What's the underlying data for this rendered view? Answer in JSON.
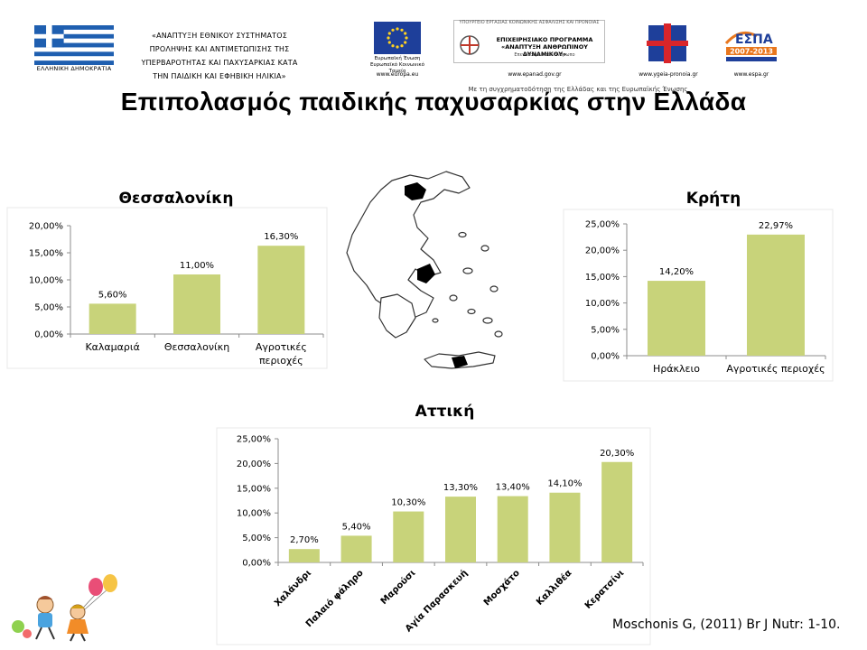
{
  "header": {
    "flag_caption": "ΕΛΛΗΝΙΚΗ ΔΗΜΟΚΡΑΤΙΑ",
    "project_lines": [
      "«ΑΝΑΠΤΥΞΗ ΕΘΝΙΚΟΥ ΣΥΣΤΗΜΑΤΟΣ",
      "ΠΡΟΛΗΨΗΣ ΚΑΙ ΑΝΤΙΜΕΤΩΠΙΣΗΣ ΤΗΣ",
      "ΥΠΕΡΒΑΡΟΤΗΤΑΣ ΚΑΙ ΠΑΧΥΣΑΡΚΙΑΣ ΚΑΤΑ",
      "ΤΗΝ ΠΑΙΔΙΚΗ ΚΑΙ ΕΦΗΒΙΚΗ ΗΛΙΚΙΑ»"
    ],
    "eu_caption": "Ευρωπαϊκή Ένωση Ευρωπαϊκό Κοινωνικό Ταμείο",
    "eu_url": "www.europa.eu",
    "op_top": "ΥΠΟΥΡΓΕΙΟ ΕΡΓΑΣΙΑΣ ΚΟΙΝΩΝΙΚΗΣ ΑΣΦΑΛΙΣΗΣ ΚΑΙ ΠΡΟΝΟΙΑΣ",
    "op_name": "ΕΠΙΧΕΙΡΗΣΙΑΚΟ ΠΡΟΓΡΑΜΜΑ «ΑΝΑΠΤΥΞΗ ΑΝΘΡΩΠΙΝΟΥ ΔΥΝΑΜΙΚΟΥ»",
    "op_sub": "Επενδύουμε στον άνθρωπο",
    "op_url": "www.epanad.gov.gr",
    "ministry_url": "www.ygeia-pronoia.gr",
    "espa_name": "ΕΣΠΑ",
    "espa_years": "2007-2013",
    "espa_url": "www.espa.gr",
    "cofunding": "Με τη συγχρηματοδότηση της Ελλάδας και της Ευρωπαϊκής Ένωσης"
  },
  "title": "Επιπολασμός παιδικής παχυσαρκίας στην Ελλάδα",
  "citation": "Moschonis G, (2011) Br J Nutr: 1-10.",
  "colors": {
    "bar": "#c8d37a",
    "axis": "#8c8c8c",
    "map_fill": "#000000",
    "map_stroke": "#333333"
  },
  "chart_data": [
    {
      "type": "bar",
      "title": "Θεσσαλονίκη",
      "categories": [
        "Καλαμαριά",
        "Θεσσαλονίκη",
        "Αγροτικές περιοχές"
      ],
      "category_lines": [
        [
          "Καλαμαριά"
        ],
        [
          "Θεσσαλονίκη"
        ],
        [
          "Αγροτικές",
          "περιοχές"
        ]
      ],
      "values": [
        5.6,
        11.0,
        16.3
      ],
      "value_labels": [
        "5,60%",
        "11,00%",
        "16,30%"
      ],
      "ylim": [
        0,
        20
      ],
      "yticks": [
        0,
        5,
        10,
        15,
        20
      ],
      "ytick_labels": [
        "0,00%",
        "5,00%",
        "10,00%",
        "15,00%",
        "20,00%"
      ],
      "grid": false,
      "legend": "none"
    },
    {
      "type": "bar",
      "title": "Κρήτη",
      "categories": [
        "Ηράκλειο",
        "Αγροτικές περιοχές"
      ],
      "category_lines": [
        [
          "Ηράκλειο"
        ],
        [
          "Αγροτικές περιοχές"
        ]
      ],
      "values": [
        14.2,
        22.97
      ],
      "value_labels": [
        "14,20%",
        "22,97%"
      ],
      "ylim": [
        0,
        25
      ],
      "yticks": [
        0,
        5,
        10,
        15,
        20,
        25
      ],
      "ytick_labels": [
        "0,00%",
        "5,00%",
        "10,00%",
        "15,00%",
        "20,00%",
        "25,00%"
      ],
      "grid": false,
      "legend": "none"
    },
    {
      "type": "bar",
      "title": "Αττική",
      "categories": [
        "Χαλάνδρι",
        "Παλαιό φάληρο",
        "Μαρούσι",
        "Αγία Παρασκευή",
        "Μοσχάτο",
        "Καλλιθέα",
        "Κερατσίνι"
      ],
      "category_lines": [
        [
          "Χαλάνδρι"
        ],
        [
          "Παλαιό φάληρο"
        ],
        [
          "Μαρούσι"
        ],
        [
          "Αγία Παρασκευή"
        ],
        [
          "Μοσχάτο"
        ],
        [
          "Καλλιθέα"
        ],
        [
          "Κερατσίνι"
        ]
      ],
      "values": [
        2.7,
        5.4,
        10.3,
        13.3,
        13.4,
        14.1,
        20.3
      ],
      "value_labels": [
        "2,70%",
        "5,40%",
        "10,30%",
        "13,30%",
        "13,40%",
        "14,10%",
        "20,30%"
      ],
      "ylim": [
        0,
        25
      ],
      "yticks": [
        0,
        5,
        10,
        15,
        20,
        25
      ],
      "ytick_labels": [
        "0,00%",
        "5,00%",
        "10,00%",
        "15,00%",
        "20,00%",
        "25,00%"
      ],
      "grid": false,
      "legend": "none"
    }
  ]
}
